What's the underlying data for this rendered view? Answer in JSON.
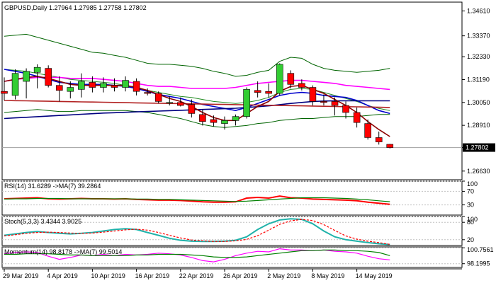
{
  "chart_data": [
    {
      "panel": "price",
      "type": "candlestick",
      "title": "GBPUSD,Daily  1.27964 1.27985 1.27758 1.27802",
      "symbol": "GBPUSD",
      "timeframe": "Daily",
      "ohlc_header": [
        1.27964,
        1.27985,
        1.27758,
        1.27802
      ],
      "current_price": 1.27802,
      "current_price_label": "1.27802",
      "ylim": [
        1.262,
        1.3505
      ],
      "y_ticks": [
        1.3461,
        1.3337,
        1.3233,
        1.3119,
        1.3005,
        1.2891,
        1.27802,
        1.2663
      ],
      "y_tick_labels": [
        "1.34610",
        "1.33370",
        "1.32330",
        "1.31190",
        "1.30050",
        "1.28910",
        "1.27802",
        "1.26630"
      ],
      "x_labels": [
        {
          "i": 0,
          "label": "29 Mar 2019"
        },
        {
          "i": 4,
          "label": "4 Apr 2019"
        },
        {
          "i": 8,
          "label": "10 Apr 2019"
        },
        {
          "i": 12,
          "label": "16 Apr 2019"
        },
        {
          "i": 16,
          "label": "22 Apr 2019"
        },
        {
          "i": 20,
          "label": "26 Apr 2019"
        },
        {
          "i": 24,
          "label": "2 May 2019"
        },
        {
          "i": 28,
          "label": "8 May 2019"
        },
        {
          "i": 32,
          "label": "14 May 2019"
        }
      ],
      "candles": [
        {
          "o": 1.306,
          "h": 1.313,
          "l": 1.3015,
          "c": 1.305
        },
        {
          "o": 1.304,
          "h": 1.317,
          "l": 1.302,
          "c": 1.315
        },
        {
          "o": 1.311,
          "h": 1.3175,
          "l": 1.3025,
          "c": 1.316
        },
        {
          "o": 1.3155,
          "h": 1.3195,
          "l": 1.3075,
          "c": 1.318
        },
        {
          "o": 1.3175,
          "h": 1.319,
          "l": 1.308,
          "c": 1.309
        },
        {
          "o": 1.309,
          "h": 1.3135,
          "l": 1.301,
          "c": 1.3065
        },
        {
          "o": 1.306,
          "h": 1.311,
          "l": 1.3025,
          "c": 1.308
        },
        {
          "o": 1.307,
          "h": 1.315,
          "l": 1.303,
          "c": 1.311
        },
        {
          "o": 1.3105,
          "h": 1.3135,
          "l": 1.3055,
          "c": 1.308
        },
        {
          "o": 1.308,
          "h": 1.313,
          "l": 1.3055,
          "c": 1.31
        },
        {
          "o": 1.309,
          "h": 1.3125,
          "l": 1.306,
          "c": 1.308
        },
        {
          "o": 1.308,
          "h": 1.3135,
          "l": 1.306,
          "c": 1.3115
        },
        {
          "o": 1.311,
          "h": 1.3125,
          "l": 1.304,
          "c": 1.306
        },
        {
          "o": 1.3055,
          "h": 1.3075,
          "l": 1.304,
          "c": 1.305
        },
        {
          "o": 1.305,
          "h": 1.306,
          "l": 1.3,
          "c": 1.301
        },
        {
          "o": 1.3005,
          "h": 1.3035,
          "l": 1.299,
          "c": 1.3005
        },
        {
          "o": 1.3005,
          "h": 1.303,
          "l": 1.2985,
          "c": 1.299
        },
        {
          "o": 1.2995,
          "h": 1.302,
          "l": 1.293,
          "c": 1.295
        },
        {
          "o": 1.2945,
          "h": 1.297,
          "l": 1.289,
          "c": 1.291
        },
        {
          "o": 1.292,
          "h": 1.294,
          "l": 1.2885,
          "c": 1.2905
        },
        {
          "o": 1.29,
          "h": 1.2935,
          "l": 1.287,
          "c": 1.2915
        },
        {
          "o": 1.2915,
          "h": 1.2945,
          "l": 1.289,
          "c": 1.2935
        },
        {
          "o": 1.2935,
          "h": 1.308,
          "l": 1.2925,
          "c": 1.307
        },
        {
          "o": 1.3065,
          "h": 1.311,
          "l": 1.303,
          "c": 1.3055
        },
        {
          "o": 1.306,
          "h": 1.31,
          "l": 1.303,
          "c": 1.305
        },
        {
          "o": 1.305,
          "h": 1.32,
          "l": 1.304,
          "c": 1.3195
        },
        {
          "o": 1.315,
          "h": 1.3165,
          "l": 1.3075,
          "c": 1.3095
        },
        {
          "o": 1.31,
          "h": 1.312,
          "l": 1.3065,
          "c": 1.308
        },
        {
          "o": 1.308,
          "h": 1.309,
          "l": 1.299,
          "c": 1.301
        },
        {
          "o": 1.301,
          "h": 1.3045,
          "l": 1.299,
          "c": 1.3005
        },
        {
          "o": 1.301,
          "h": 1.303,
          "l": 1.294,
          "c": 1.299
        },
        {
          "o": 1.299,
          "h": 1.301,
          "l": 1.2925,
          "c": 1.2955
        },
        {
          "o": 1.2955,
          "h": 1.298,
          "l": 1.288,
          "c": 1.2905
        },
        {
          "o": 1.29,
          "h": 1.292,
          "l": 1.282,
          "c": 1.283
        },
        {
          "o": 1.283,
          "h": 1.286,
          "l": 1.2795,
          "c": 1.2808
        },
        {
          "o": 1.27964,
          "h": 1.27985,
          "l": 1.27758,
          "c": 1.27802
        }
      ],
      "overlays": [
        {
          "color": "#006400",
          "values": [
            1.3335,
            1.334,
            1.3345,
            1.333,
            1.3315,
            1.33,
            1.3285,
            1.327,
            1.3255,
            1.325,
            1.324,
            1.323,
            1.3215,
            1.32,
            1.3195,
            1.3195,
            1.319,
            1.3185,
            1.3175,
            1.316,
            1.315,
            1.3135,
            1.314,
            1.3155,
            1.3165,
            1.321,
            1.323,
            1.3225,
            1.3195,
            1.3175,
            1.3165,
            1.316,
            1.3155,
            1.316,
            1.3165,
            1.3175
          ]
        },
        {
          "color": "#006400",
          "values": [
            1.2955,
            1.296,
            1.2965,
            1.297,
            1.2965,
            1.296,
            1.296,
            1.2965,
            1.2965,
            1.2965,
            1.2965,
            1.2965,
            1.296,
            1.2955,
            1.2945,
            1.2935,
            1.2925,
            1.291,
            1.2895,
            1.2885,
            1.288,
            1.2885,
            1.289,
            1.29,
            1.2905,
            1.2915,
            1.292,
            1.2925,
            1.2925,
            1.293,
            1.2935,
            1.2935,
            1.2935,
            1.294,
            1.2945,
            1.2945
          ]
        },
        {
          "color": "#228b22",
          "values": [
            1.317,
            1.3165,
            1.316,
            1.315,
            1.314,
            1.313,
            1.312,
            1.3115,
            1.311,
            1.3105,
            1.31,
            1.309,
            1.308,
            1.3065,
            1.3055,
            1.3045,
            1.3035,
            1.303,
            1.302,
            1.301,
            1.3005,
            1.3,
            1.3005,
            1.3015,
            1.303,
            1.3055,
            1.307,
            1.3075,
            1.307,
            1.3055,
            1.304,
            1.3025,
            1.301,
            1.299,
            1.2975,
            1.2965
          ]
        },
        {
          "color": "#ff00ff",
          "values": [
            1.311,
            1.312,
            1.3125,
            1.313,
            1.313,
            1.313,
            1.3125,
            1.3125,
            1.3125,
            1.312,
            1.3115,
            1.311,
            1.31,
            1.309,
            1.3085,
            1.3085,
            1.308,
            1.3075,
            1.3075,
            1.3075,
            1.3075,
            1.308,
            1.309,
            1.31,
            1.3105,
            1.311,
            1.3115,
            1.3115,
            1.311,
            1.3105,
            1.31,
            1.309,
            1.3085,
            1.308,
            1.3075,
            1.307
          ]
        },
        {
          "color": "#0000cd",
          "values": [
            1.317,
            1.316,
            1.315,
            1.3135,
            1.312,
            1.3105,
            1.31,
            1.3095,
            1.3095,
            1.3095,
            1.309,
            1.3085,
            1.3075,
            1.306,
            1.3045,
            1.3035,
            1.3025,
            1.301,
            1.2995,
            1.2985,
            1.2975,
            1.2965,
            1.298,
            1.3,
            1.302,
            1.304,
            1.305,
            1.3055,
            1.305,
            1.304,
            1.3035,
            1.303,
            1.3015,
            1.299,
            1.2965,
            1.295
          ]
        },
        {
          "color": "#000080",
          "values": [
            1.2925,
            1.2928,
            1.2931,
            1.2934,
            1.2937,
            1.294,
            1.2943,
            1.2946,
            1.2949,
            1.2952,
            1.2954,
            1.2956,
            1.2958,
            1.296,
            1.2962,
            1.2964,
            1.2966,
            1.2968,
            1.297,
            1.2972,
            1.2974,
            1.2976,
            1.298,
            1.2984,
            1.2988,
            1.2994,
            1.3,
            1.3005,
            1.301,
            1.3012,
            1.3013,
            1.3013,
            1.3013,
            1.3013,
            1.3013,
            1.3013
          ]
        },
        {
          "color": "#b22222",
          "values": [
            1.3015,
            1.3014,
            1.3013,
            1.3012,
            1.3011,
            1.301,
            1.3009,
            1.3008,
            1.3007,
            1.3006,
            1.3005,
            1.3004,
            1.3003,
            1.3002,
            1.3001,
            1.3,
            1.2999,
            1.2998,
            1.2997,
            1.2996,
            1.2995,
            1.2994,
            1.2993,
            1.2992,
            1.2991,
            1.299,
            1.2989,
            1.2988,
            1.2987,
            1.2986,
            1.2985,
            1.2984,
            1.2983,
            1.2982,
            1.2981,
            1.298
          ]
        },
        {
          "color": "#8b0000",
          "values": [
            1.311,
            1.312,
            1.313,
            1.3135,
            1.3125,
            1.311,
            1.3095,
            1.309,
            1.309,
            1.309,
            1.309,
            1.309,
            1.308,
            1.3065,
            1.3045,
            1.3025,
            1.301,
            1.2985,
            1.2955,
            1.293,
            1.2915,
            1.2915,
            1.295,
            1.2985,
            1.301,
            1.306,
            1.3085,
            1.309,
            1.307,
            1.305,
            1.302,
            1.299,
            1.2955,
            1.291,
            1.287,
            1.2835
          ]
        }
      ]
    },
    {
      "panel": "rsi",
      "type": "line",
      "title": "RSI(14) 31.6289  ->MA(7) 39.2864",
      "ylim": [
        0,
        100
      ],
      "y_ticks": [
        30,
        70,
        100
      ],
      "y_tick_labels": [
        "30",
        "70",
        "100"
      ],
      "series": [
        {
          "name": "RSI(14)",
          "color": "#ff0000",
          "values": [
            48,
            49,
            50,
            51,
            48,
            47,
            48,
            49,
            48,
            48,
            47,
            48,
            46,
            45,
            44,
            44,
            43,
            41,
            39,
            38,
            38,
            39,
            50,
            52,
            50,
            56,
            51,
            50,
            47,
            46,
            45,
            44,
            42,
            38,
            35,
            31.6289
          ]
        },
        {
          "name": "MA(7)",
          "color": "#008000",
          "values": [
            47,
            48,
            48,
            49,
            49,
            49,
            48,
            48,
            48,
            48,
            48,
            48,
            47,
            47,
            46,
            46,
            45,
            44,
            43,
            42,
            41,
            40,
            41,
            43,
            45,
            47,
            49,
            51,
            51,
            51,
            50,
            49,
            47,
            45,
            42,
            39.2864
          ]
        }
      ]
    },
    {
      "panel": "stoch",
      "type": "line",
      "title": "Stoch(5,3,3) 3.4344  3.9025",
      "ylim": [
        0,
        100
      ],
      "y_ticks": [
        20,
        80,
        100
      ],
      "y_tick_labels": [
        "20",
        "80",
        "100"
      ],
      "series": [
        {
          "name": "Stoch(5,3,3)",
          "color": "#20b2aa",
          "values": [
            35,
            40,
            45,
            48,
            45,
            42,
            40,
            42,
            45,
            50,
            55,
            58,
            55,
            45,
            35,
            25,
            18,
            15,
            14,
            14,
            15,
            18,
            30,
            55,
            75,
            88,
            92,
            90,
            75,
            50,
            30,
            20,
            15,
            10,
            6,
            3.4344
          ]
        },
        {
          "name": "Signal",
          "color": "#ff0000",
          "values": [
            33,
            37,
            42,
            45,
            46,
            45,
            43,
            42,
            43,
            46,
            50,
            54,
            56,
            53,
            45,
            35,
            26,
            19,
            16,
            14,
            14,
            16,
            21,
            34,
            53,
            73,
            85,
            90,
            86,
            72,
            52,
            33,
            22,
            15,
            10,
            3.9025
          ]
        }
      ]
    },
    {
      "panel": "momentum",
      "type": "line",
      "title": "Momentum(14) 98.8178  ->MA(7) 99.5014",
      "ylim": [
        97.6,
        100.9
      ],
      "y_ticks": [
        98.1995,
        100.7561
      ],
      "y_tick_labels": [
        "98.1995",
        "100.7561"
      ],
      "series": [
        {
          "name": "Momentum(14)",
          "color": "#ff00ff",
          "values": [
            99.8,
            100.0,
            100.1,
            100.0,
            99.4,
            98.9,
            99.2,
            99.6,
            99.5,
            99.7,
            99.5,
            99.7,
            99.6,
            99.7,
            99.9,
            99.8,
            99.6,
            99.2,
            98.7,
            98.5,
            98.9,
            99.5,
            99.9,
            100.2,
            100.1,
            100.6,
            100.4,
            100.4,
            100.3,
            100.4,
            100.2,
            100.1,
            99.9,
            99.4,
            99.0,
            98.8178
          ]
        },
        {
          "name": "MA(7)",
          "color": "#008000",
          "values": [
            99.7,
            99.7,
            99.8,
            99.8,
            99.8,
            99.7,
            99.6,
            99.6,
            99.5,
            99.5,
            99.5,
            99.5,
            99.6,
            99.6,
            99.7,
            99.7,
            99.7,
            99.6,
            99.5,
            99.3,
            99.2,
            99.2,
            99.3,
            99.5,
            99.7,
            99.9,
            100.1,
            100.3,
            100.3,
            100.4,
            100.4,
            100.3,
            100.3,
            100.2,
            100.0,
            99.5014
          ]
        }
      ]
    }
  ]
}
